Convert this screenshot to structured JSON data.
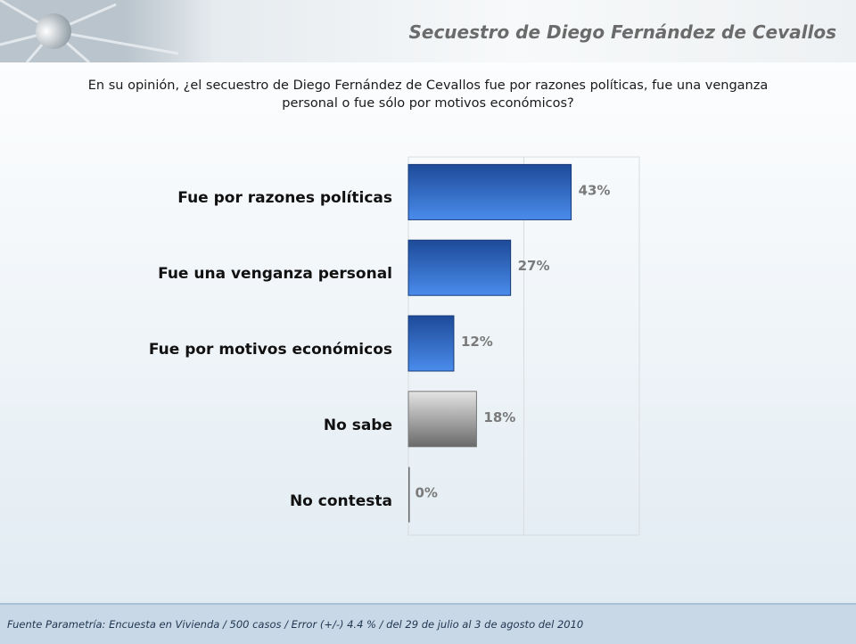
{
  "header": {
    "title": "Secuestro de Diego Fernández de Cevallos"
  },
  "question": "En su opinión, ¿el secuestro de Diego Fernández de Cevallos fue por razones políticas, fue una venganza personal o fue sólo por motivos económicos?",
  "chart_data": {
    "type": "bar",
    "orientation": "horizontal",
    "categories": [
      "Fue por razones políticas",
      "Fue una venganza personal",
      "Fue por motivos económicos",
      "No sabe",
      "No contesta"
    ],
    "values": [
      43,
      27,
      12,
      18,
      0
    ],
    "data_labels": [
      "43%",
      "27%",
      "12%",
      "18%",
      "0%"
    ],
    "xlim": [
      0,
      61
    ],
    "grid": true,
    "colors": [
      "#2a5fb8",
      "#2a5fb8",
      "#2a5fb8",
      "#9a9a9a",
      "#777777"
    ]
  },
  "footer": {
    "source": "Fuente Parametría: Encuesta en Vivienda / 500 casos / Error (+/-) 4.4 % / del 29 de julio al 3 de agosto del 2010"
  }
}
